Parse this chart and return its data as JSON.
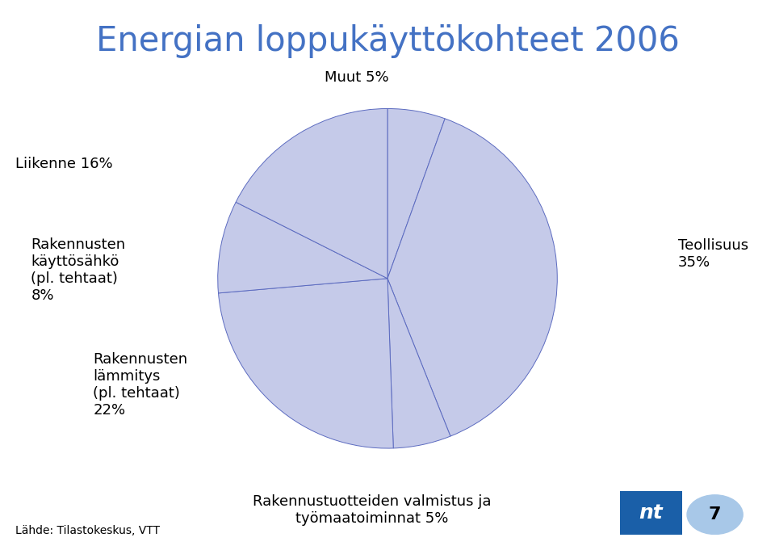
{
  "title": "Energian loppukäyttökohteet 2006",
  "title_color": "#4472C4",
  "title_fontsize": 30,
  "pie_color": "#C5CAE9",
  "pie_edge_color": "#5C6BC0",
  "ordered_values": [
    5,
    35,
    5,
    22,
    8,
    16
  ],
  "startangle": 90,
  "source_text": "Lähde: Tilastokeskus, VTT",
  "source_fontsize": 10,
  "label_fontsize": 13,
  "page_number": "7",
  "labels": [
    {
      "text": "Muut 5%",
      "fx": 0.46,
      "fy": 0.845,
      "ha": "center",
      "va": "bottom"
    },
    {
      "text": "Teollisuus\n35%",
      "fx": 0.875,
      "fy": 0.535,
      "ha": "left",
      "va": "center"
    },
    {
      "text": "Rakennustuotteiden valmistus ja\ntyömaatoiminnat 5%",
      "fx": 0.48,
      "fy": 0.095,
      "ha": "center",
      "va": "top"
    },
    {
      "text": "Rakennusten\nlämmitys\n(pl. tehtaat)\n22%",
      "fx": 0.12,
      "fy": 0.295,
      "ha": "left",
      "va": "center"
    },
    {
      "text": "Rakennusten\nkäyttösähkö\n(pl. tehtaat)\n8%",
      "fx": 0.04,
      "fy": 0.505,
      "ha": "left",
      "va": "center"
    },
    {
      "text": "Liikenne 16%",
      "fx": 0.145,
      "fy": 0.7,
      "ha": "right",
      "va": "center"
    }
  ]
}
